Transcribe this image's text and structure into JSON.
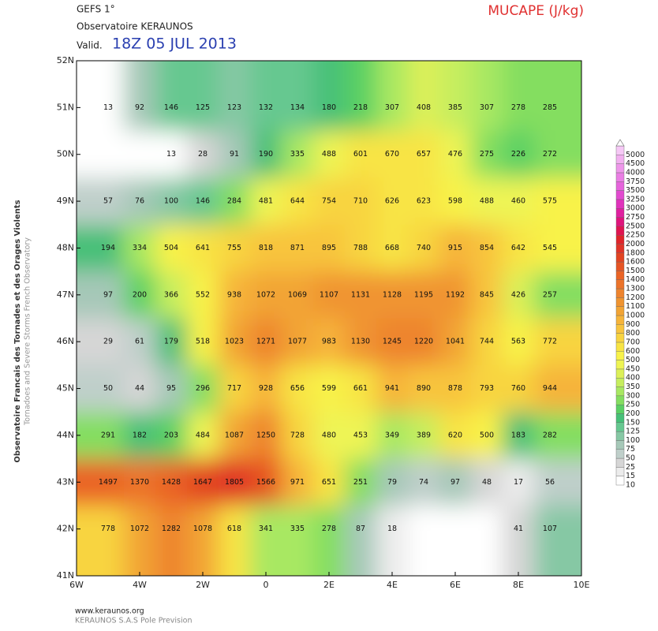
{
  "header": {
    "model": "GEFS 1°",
    "source": "Observatoire KERAUNOS",
    "valid_label": "Valid.",
    "valid_time": "18Z 05 JUL 2013",
    "parameter": "MUCAPE (J/kg)"
  },
  "side_text": [
    "Observatoire Francais des Tornades et des Orages Violents",
    "Tornadoes and Severe Storms French Observatory"
  ],
  "footer": [
    "www.keraunos.org",
    "KERAUNOS S.A.S Pole Prevision"
  ],
  "map": {
    "lat_labels": [
      "52N",
      "51N",
      "50N",
      "49N",
      "48N",
      "47N",
      "46N",
      "45N",
      "44N",
      "43N",
      "42N",
      "41N"
    ],
    "lon_labels": [
      "6W",
      "4W",
      "2W",
      "0",
      "2E",
      "4E",
      "6E",
      "8E",
      "10E"
    ],
    "rows": [
      [
        13,
        92,
        146,
        125,
        123,
        132,
        134,
        180,
        218,
        307,
        408,
        385,
        307,
        278,
        285
      ],
      [
        null,
        null,
        13,
        28,
        91,
        190,
        335,
        488,
        601,
        670,
        657,
        476,
        275,
        226,
        272
      ],
      [
        57,
        76,
        100,
        146,
        284,
        481,
        644,
        754,
        710,
        626,
        623,
        598,
        488,
        460,
        575
      ],
      [
        194,
        334,
        504,
        641,
        755,
        818,
        871,
        895,
        788,
        668,
        740,
        915,
        854,
        642,
        545
      ],
      [
        97,
        200,
        366,
        552,
        938,
        1072,
        1069,
        1107,
        1131,
        1128,
        1195,
        1192,
        845,
        426,
        257
      ],
      [
        29,
        61,
        179,
        518,
        1023,
        1271,
        1077,
        983,
        1130,
        1245,
        1220,
        1041,
        744,
        563,
        772
      ],
      [
        50,
        44,
        95,
        296,
        717,
        928,
        656,
        599,
        661,
        941,
        890,
        878,
        793,
        760,
        944
      ],
      [
        291,
        182,
        203,
        484,
        1087,
        1250,
        728,
        480,
        453,
        349,
        389,
        620,
        500,
        183,
        282
      ],
      [
        1497,
        1370,
        1428,
        1647,
        1805,
        1566,
        971,
        651,
        251,
        79,
        74,
        97,
        48,
        17,
        56
      ],
      [
        778,
        1072,
        1282,
        1078,
        618,
        341,
        335,
        278,
        87,
        18,
        null,
        null,
        null,
        41,
        107
      ]
    ]
  },
  "colorbar": {
    "levels": [
      10,
      15,
      25,
      50,
      75,
      100,
      125,
      150,
      200,
      250,
      300,
      350,
      400,
      450,
      500,
      600,
      700,
      800,
      900,
      1000,
      1100,
      1200,
      1300,
      1400,
      1500,
      1600,
      1800,
      2000,
      2250,
      2500,
      2750,
      3000,
      3250,
      3500,
      3750,
      4000,
      4500,
      5000
    ],
    "colors": [
      "#ffffff",
      "#ececec",
      "#d6d6d6",
      "#bfcfca",
      "#a6c8b8",
      "#86c8a4",
      "#66c890",
      "#46c078",
      "#5ad064",
      "#84de60",
      "#a8e862",
      "#c6ee5e",
      "#dcf058",
      "#eef454",
      "#f8f24a",
      "#f8e444",
      "#f8d440",
      "#f8c43e",
      "#f6b43a",
      "#f2a434",
      "#f09430",
      "#ee842e",
      "#ec742a",
      "#ea6426",
      "#e65424",
      "#e24422",
      "#e03428",
      "#e0242a",
      "#e01450",
      "#e0147c",
      "#e020a0",
      "#e032bc",
      "#e24ad0",
      "#e664dc",
      "#ea7ee4",
      "#ee96ea",
      "#f2b0f0",
      "#f6c8f6"
    ]
  }
}
